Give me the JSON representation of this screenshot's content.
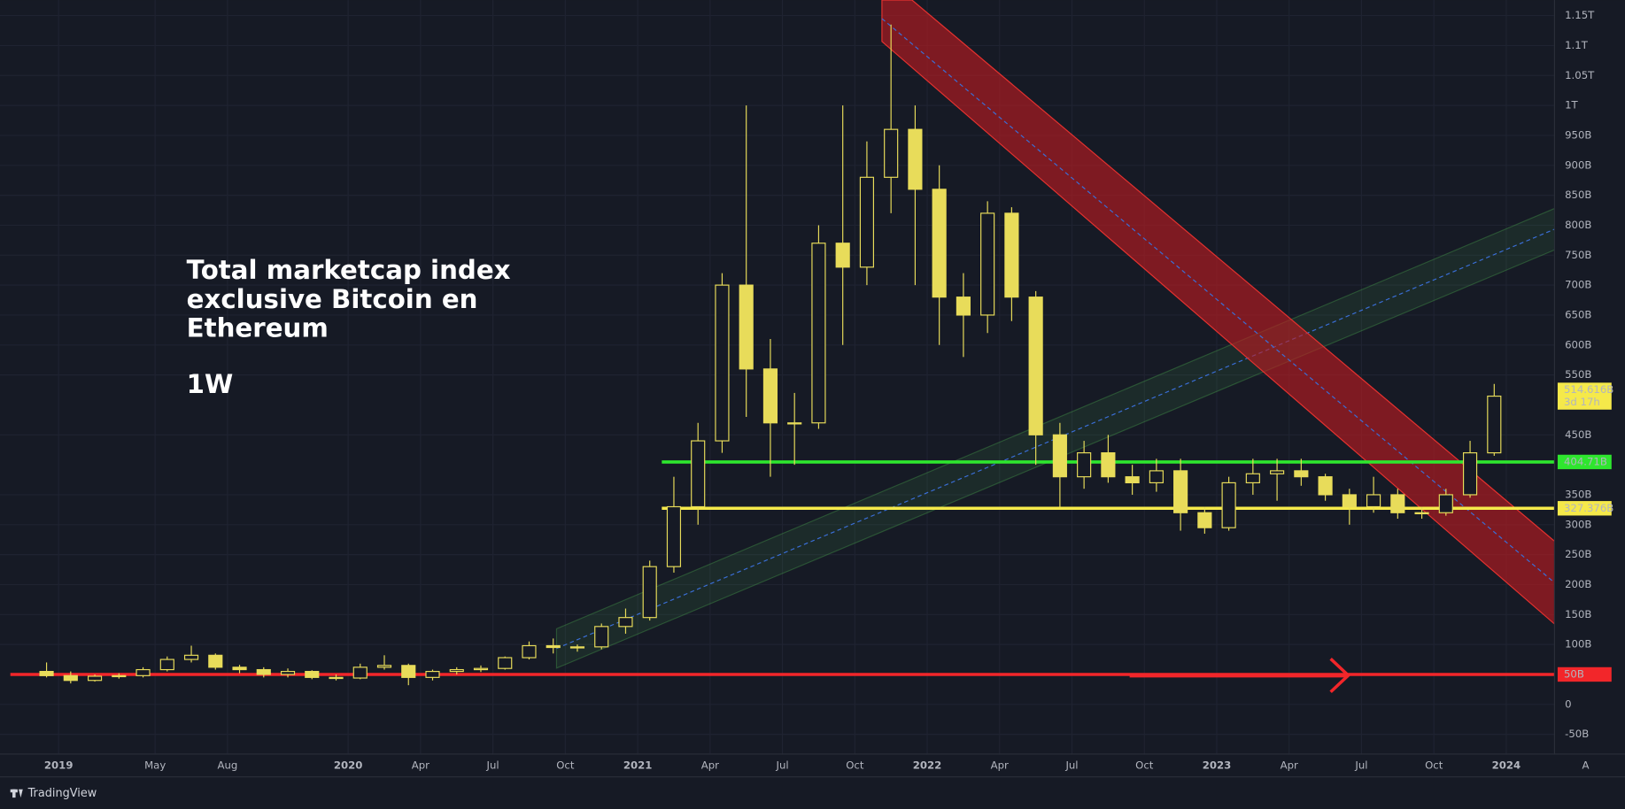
{
  "chart_data": {
    "type": "candlestick",
    "annotations": [
      "Total marketcap index",
      "exclusive Bitcoin en",
      "Ethereum",
      "1W"
    ],
    "color": "#e8dc5a",
    "x": [
      "2018-12",
      "2019-01",
      "2019-02",
      "2019-03",
      "2019-04",
      "2019-05",
      "2019-06",
      "2019-07",
      "2019-08",
      "2019-09",
      "2019-10",
      "2019-11",
      "2019-12",
      "2020-01",
      "2020-02",
      "2020-03",
      "2020-04",
      "2020-05",
      "2020-06",
      "2020-07",
      "2020-08",
      "2020-09",
      "2020-10",
      "2020-11",
      "2020-12",
      "2021-01",
      "2021-02",
      "2021-03",
      "2021-04",
      "2021-05",
      "2021-06",
      "2021-07",
      "2021-08",
      "2021-09",
      "2021-10",
      "2021-11",
      "2021-12",
      "2022-01",
      "2022-02",
      "2022-03",
      "2022-04",
      "2022-05",
      "2022-06",
      "2022-07",
      "2022-08",
      "2022-09",
      "2022-10",
      "2022-11",
      "2022-12",
      "2023-01",
      "2023-02",
      "2023-03",
      "2023-04",
      "2023-05",
      "2023-06",
      "2023-07",
      "2023-08",
      "2023-09",
      "2023-10",
      "2023-11",
      "2023-12"
    ],
    "open": [
      55,
      48,
      40,
      47,
      48,
      58,
      75,
      82,
      62,
      58,
      50,
      55,
      45,
      44,
      62,
      65,
      45,
      55,
      58,
      60,
      78,
      98,
      95,
      96,
      130,
      145,
      230,
      330,
      440,
      700,
      560,
      470,
      470,
      770,
      730,
      880,
      960,
      860,
      680,
      650,
      820,
      680,
      450,
      380,
      420,
      380,
      370,
      390,
      320,
      295,
      370,
      385,
      390,
      380,
      350,
      330,
      350,
      320,
      320,
      350,
      420
    ],
    "high": [
      70,
      55,
      50,
      52,
      62,
      80,
      98,
      85,
      66,
      62,
      60,
      57,
      50,
      68,
      82,
      68,
      58,
      62,
      65,
      80,
      105,
      110,
      100,
      135,
      160,
      240,
      380,
      470,
      720,
      1000,
      610,
      520,
      800,
      1000,
      940,
      1135,
      1000,
      900,
      720,
      840,
      830,
      690,
      470,
      440,
      450,
      400,
      410,
      410,
      330,
      380,
      410,
      410,
      410,
      385,
      360,
      380,
      360,
      330,
      360,
      440,
      535
    ],
    "low": [
      45,
      35,
      38,
      43,
      45,
      55,
      70,
      58,
      52,
      45,
      45,
      42,
      40,
      42,
      58,
      32,
      40,
      50,
      54,
      58,
      75,
      85,
      88,
      92,
      118,
      140,
      220,
      300,
      420,
      480,
      380,
      400,
      460,
      600,
      700,
      820,
      700,
      600,
      580,
      620,
      640,
      400,
      330,
      360,
      370,
      350,
      355,
      290,
      285,
      290,
      350,
      340,
      365,
      340,
      300,
      320,
      310,
      310,
      315,
      345,
      415
    ],
    "close": [
      48,
      40,
      47,
      48,
      58,
      75,
      82,
      62,
      58,
      50,
      55,
      45,
      44,
      62,
      65,
      45,
      55,
      58,
      60,
      78,
      98,
      95,
      96,
      130,
      145,
      230,
      330,
      440,
      700,
      560,
      470,
      470,
      770,
      730,
      880,
      960,
      860,
      680,
      650,
      820,
      680,
      450,
      380,
      420,
      380,
      370,
      390,
      320,
      295,
      370,
      385,
      390,
      380,
      350,
      330,
      350,
      320,
      320,
      350,
      420,
      514.616
    ],
    "xlim": [
      "2018-11",
      "2024-03"
    ],
    "xticks": [
      {
        "value": "2019-01",
        "label": "2019"
      },
      {
        "value": "2019-05",
        "label": "May"
      },
      {
        "value": "2019-08",
        "label": "Aug"
      },
      {
        "value": "2020-01",
        "label": "2020"
      },
      {
        "value": "2020-04",
        "label": "Apr"
      },
      {
        "value": "2020-07",
        "label": "Jul"
      },
      {
        "value": "2020-10",
        "label": "Oct"
      },
      {
        "value": "2021-01",
        "label": "2021"
      },
      {
        "value": "2021-04",
        "label": "Apr"
      },
      {
        "value": "2021-07",
        "label": "Jul"
      },
      {
        "value": "2021-10",
        "label": "Oct"
      },
      {
        "value": "2022-01",
        "label": "2022"
      },
      {
        "value": "2022-04",
        "label": "Apr"
      },
      {
        "value": "2022-07",
        "label": "Jul"
      },
      {
        "value": "2022-10",
        "label": "Oct"
      },
      {
        "value": "2023-01",
        "label": "2023"
      },
      {
        "value": "2023-04",
        "label": "Apr"
      },
      {
        "value": "2023-07",
        "label": "Jul"
      },
      {
        "value": "2023-10",
        "label": "Oct"
      },
      {
        "value": "2024-01",
        "label": "2024"
      }
    ],
    "ylim": [
      -83,
      1176
    ],
    "yticks": [
      {
        "value": 1150,
        "label": "1.15T"
      },
      {
        "value": 1100,
        "label": "1.1T"
      },
      {
        "value": 1050,
        "label": "1.05T"
      },
      {
        "value": 1000,
        "label": "1T"
      },
      {
        "value": 950,
        "label": "950B"
      },
      {
        "value": 900,
        "label": "900B"
      },
      {
        "value": 850,
        "label": "850B"
      },
      {
        "value": 800,
        "label": "800B"
      },
      {
        "value": 750,
        "label": "750B"
      },
      {
        "value": 700,
        "label": "700B"
      },
      {
        "value": 650,
        "label": "650B"
      },
      {
        "value": 600,
        "label": "600B"
      },
      {
        "value": 550,
        "label": "550B"
      },
      {
        "value": 450,
        "label": "450B"
      },
      {
        "value": 350,
        "label": "350B"
      },
      {
        "value": 300,
        "label": "300B"
      },
      {
        "value": 250,
        "label": "250B"
      },
      {
        "value": 200,
        "label": "200B"
      },
      {
        "value": 150,
        "label": "150B"
      },
      {
        "value": 100,
        "label": "100B"
      },
      0,
      {
        "value": -50,
        "label": "-50B"
      }
    ],
    "grid": true,
    "levels": [
      {
        "value": 404.71,
        "label": "404.71B",
        "color": "#2ee62e",
        "from": "2021-02"
      },
      {
        "value": 327.376,
        "label": "327.376B",
        "color": "#f5e94a",
        "from": "2021-02"
      },
      {
        "value": 50,
        "label": "50B",
        "color": "#f2262a",
        "from": "2018-11"
      }
    ],
    "last_price": {
      "value": 514.616,
      "label": "514.616B",
      "countdown": "3d 17h",
      "color": "#f5e94a"
    }
  },
  "footer": {
    "brand": "TradingView",
    "autoscale": "A"
  }
}
